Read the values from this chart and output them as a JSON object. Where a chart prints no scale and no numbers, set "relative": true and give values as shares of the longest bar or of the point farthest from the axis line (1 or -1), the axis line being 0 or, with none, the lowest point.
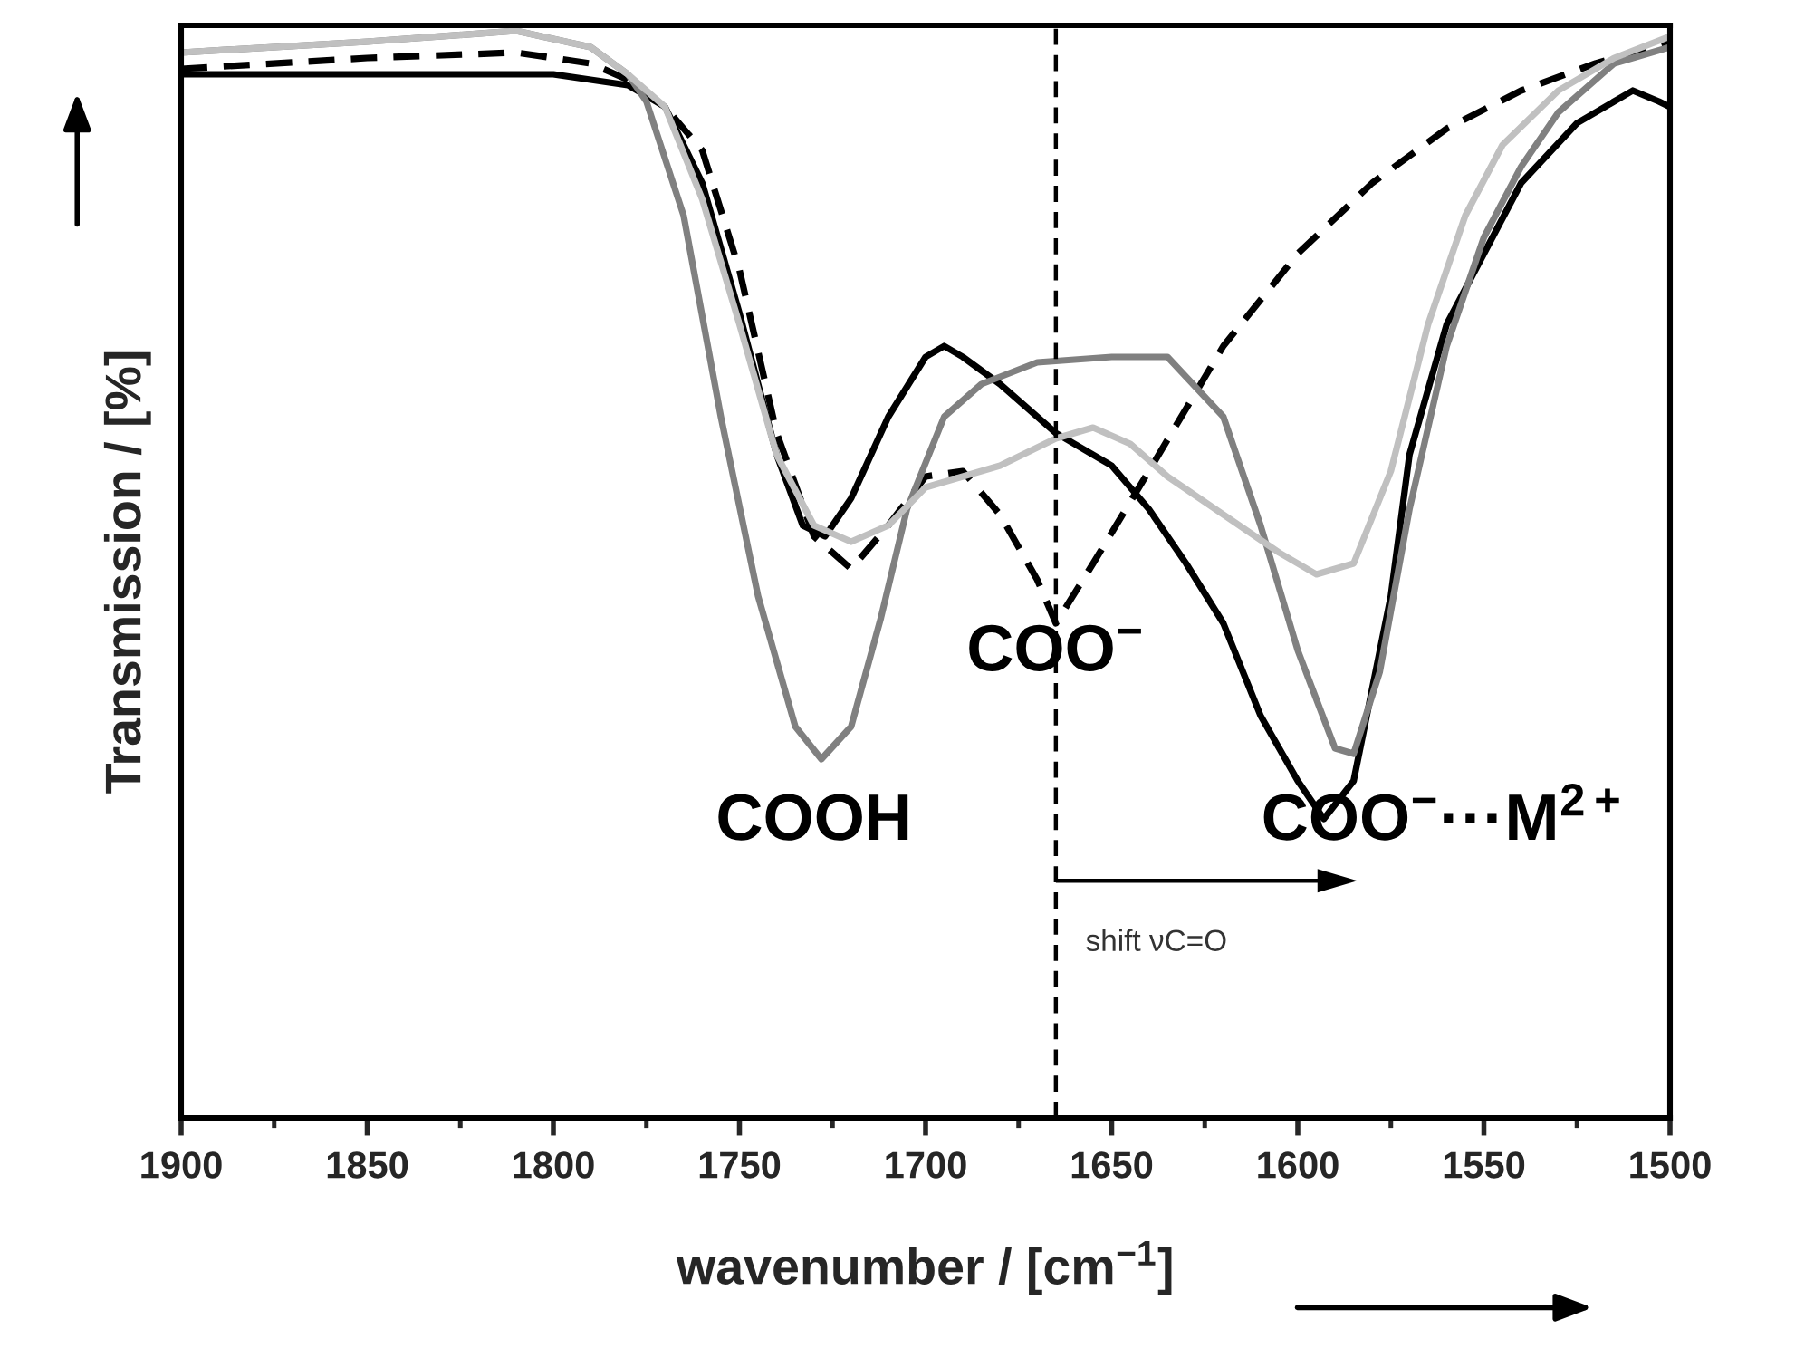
{
  "chart_data": {
    "type": "line",
    "relative": true,
    "xlabel": "wavenumber / [cm$^{−1}$]",
    "ylabel": "Transmission / [%]",
    "xlim": [
      1900,
      1500
    ],
    "xticks": [
      1900,
      {
        "value": 1875,
        "label": null
      },
      1850,
      {
        "value": 1825,
        "label": null
      },
      1800,
      {
        "value": 1775,
        "label": null
      },
      1750,
      {
        "value": 1725,
        "label": null
      },
      1700,
      {
        "value": 1675,
        "label": null
      },
      1650,
      {
        "value": 1625,
        "label": null
      },
      1600,
      {
        "value": 1575,
        "label": null
      },
      1550,
      {
        "value": 1525,
        "label": null
      },
      1500
    ],
    "series": [
      {
        "color": "#000000",
        "line_style": "solid",
        "x": [
          1900,
          1800,
          1780,
          1770,
          1760,
          1750,
          1740,
          1733,
          1727,
          1720,
          1710,
          1700,
          1695,
          1690,
          1680,
          1665,
          1650,
          1640,
          1630,
          1620,
          1610,
          1600,
          1593,
          1585,
          1575,
          1570,
          1560,
          1550,
          1540,
          1525,
          1510,
          1503,
          1500
        ],
        "values": [
          0.96,
          0.96,
          0.95,
          0.93,
          0.86,
          0.74,
          0.61,
          0.545,
          0.535,
          0.57,
          0.645,
          0.7,
          0.71,
          0.7,
          0.675,
          0.63,
          0.6,
          0.56,
          0.51,
          0.455,
          0.37,
          0.31,
          0.275,
          0.31,
          0.48,
          0.61,
          0.73,
          0.795,
          0.86,
          0.915,
          0.945,
          0.935,
          0.93
        ]
      },
      {
        "color": "#000000",
        "line_style": "dashed",
        "x": [
          1900,
          1850,
          1810,
          1790,
          1780,
          1770,
          1760,
          1750,
          1740,
          1730,
          1720,
          1710,
          1700,
          1690,
          1680,
          1670,
          1665,
          1655,
          1640,
          1620,
          1600,
          1580,
          1560,
          1540,
          1520,
          1500
        ],
        "values": [
          0.965,
          0.975,
          0.98,
          0.97,
          0.955,
          0.93,
          0.89,
          0.78,
          0.63,
          0.535,
          0.505,
          0.545,
          0.59,
          0.595,
          0.555,
          0.495,
          0.455,
          0.51,
          0.595,
          0.71,
          0.795,
          0.86,
          0.91,
          0.945,
          0.97,
          0.99
        ]
      },
      {
        "color": "#808080",
        "line_style": "solid",
        "x": [
          1900,
          1850,
          1810,
          1790,
          1780,
          1775,
          1765,
          1755,
          1745,
          1735,
          1728,
          1720,
          1712,
          1705,
          1695,
          1685,
          1670,
          1650,
          1635,
          1620,
          1610,
          1600,
          1590,
          1585,
          1578,
          1570,
          1560,
          1550,
          1540,
          1530,
          1515,
          1500
        ],
        "values": [
          0.98,
          0.99,
          1.0,
          0.985,
          0.96,
          0.935,
          0.83,
          0.645,
          0.48,
          0.36,
          0.33,
          0.36,
          0.46,
          0.56,
          0.645,
          0.675,
          0.695,
          0.7,
          0.7,
          0.645,
          0.545,
          0.43,
          0.34,
          0.335,
          0.41,
          0.56,
          0.71,
          0.81,
          0.875,
          0.925,
          0.97,
          0.985
        ]
      },
      {
        "color": "#c0c0c0",
        "line_style": "solid",
        "x": [
          1900,
          1850,
          1810,
          1790,
          1780,
          1770,
          1760,
          1750,
          1740,
          1730,
          1720,
          1710,
          1700,
          1690,
          1680,
          1665,
          1655,
          1645,
          1635,
          1620,
          1605,
          1595,
          1585,
          1575,
          1565,
          1555,
          1545,
          1530,
          1515,
          1500
        ],
        "values": [
          0.98,
          0.99,
          1.0,
          0.985,
          0.96,
          0.93,
          0.845,
          0.73,
          0.61,
          0.545,
          0.53,
          0.545,
          0.58,
          0.59,
          0.6,
          0.625,
          0.635,
          0.62,
          0.59,
          0.555,
          0.52,
          0.5,
          0.51,
          0.595,
          0.73,
          0.83,
          0.895,
          0.945,
          0.975,
          0.995
        ]
      }
    ],
    "ref_lines": [
      {
        "axis": "x",
        "value": 1665,
        "color": "#000000",
        "line_style": "dashed"
      }
    ],
    "annotations": [
      "COOH",
      {
        "text": "COO$^{−}$",
        "x": 1665,
        "y": 0.455
      },
      "COO$^{−}$···M$^{2+}$",
      "shift νC=O"
    ]
  }
}
